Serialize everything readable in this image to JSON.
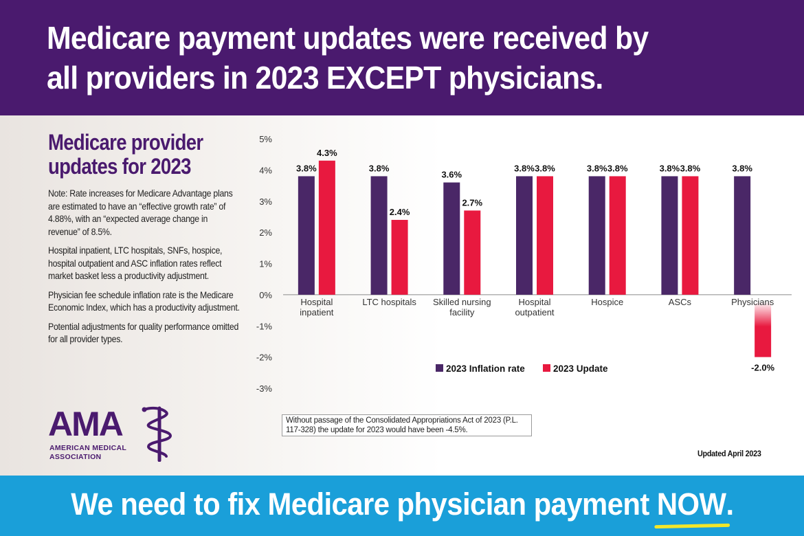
{
  "headline": "Medicare payment updates were received by\nall providers in 2023 EXCEPT physicians.",
  "sidebar": {
    "title": "Medicare provider updates for 2023",
    "notes": [
      "Note: Rate increases for Medicare Advantage plans are estimated to have an “effective growth rate” of 4.88%, with an “expected average change in revenue” of 8.5%.",
      "Hospital inpatient, LTC hospitals, SNFs, hospice, hospital outpatient and ASC inflation rates reflect market basket less a productivity adjustment.",
      "Physician fee schedule inflation rate is the Medicare Economic Index, which has a productivity adjustment.",
      "Potential adjustments for quality performance omitted for all provider types."
    ]
  },
  "logo": {
    "letters": "AMA",
    "line1": "AMERICAN MEDICAL",
    "line2": "ASSOCIATION"
  },
  "footnote": "Without passage of the Consolidated Appropriations Act of 2023 (P.L. 117-328) the update for 2023 would have been -4.5%.",
  "updated": "Updated April 2023",
  "bottom": {
    "slogan_start": "We need to fix Medicare physician payment ",
    "slogan_emph": "NOW",
    "slogan_end": "."
  },
  "colors": {
    "purple": "#4a2767",
    "red": "#e8193f",
    "banner_purple": "#4a1a6e",
    "banner_blue": "#1a9fd9"
  },
  "chart_data": {
    "type": "bar",
    "title": "",
    "xlabel": "",
    "ylabel": "",
    "ylim": [
      -3,
      5
    ],
    "yticks": [
      5,
      4,
      3,
      2,
      1,
      0,
      -1,
      -2,
      -3
    ],
    "ytick_labels": [
      "5%",
      "4%",
      "3%",
      "2%",
      "1%",
      "0%",
      "-1%",
      "-2%",
      "-3%"
    ],
    "categories": [
      [
        "Hospital",
        "inpatient"
      ],
      [
        "LTC hospitals"
      ],
      [
        "Skilled nursing",
        "facility"
      ],
      [
        "Hospital",
        "outpatient"
      ],
      [
        "Hospice"
      ],
      [
        "ASCs"
      ],
      [
        "Physicians"
      ]
    ],
    "series": [
      {
        "name": "2023 Inflation rate",
        "color": "#4a2767",
        "values": [
          3.8,
          3.8,
          3.6,
          3.8,
          3.8,
          3.8,
          3.8
        ],
        "labels": [
          "3.8%",
          "3.8%",
          "3.6%",
          "3.8%",
          "3.8%",
          "3.8%",
          "3.8%"
        ]
      },
      {
        "name": "2023 Update",
        "color": "#e8193f",
        "values": [
          4.3,
          2.4,
          2.7,
          3.8,
          3.8,
          3.8,
          -2.0
        ],
        "labels": [
          "4.3%",
          "2.4%",
          "2.7%",
          "3.8%",
          "3.8%",
          "3.8%",
          "-2.0%"
        ]
      }
    ],
    "legend": "bottom-center"
  }
}
